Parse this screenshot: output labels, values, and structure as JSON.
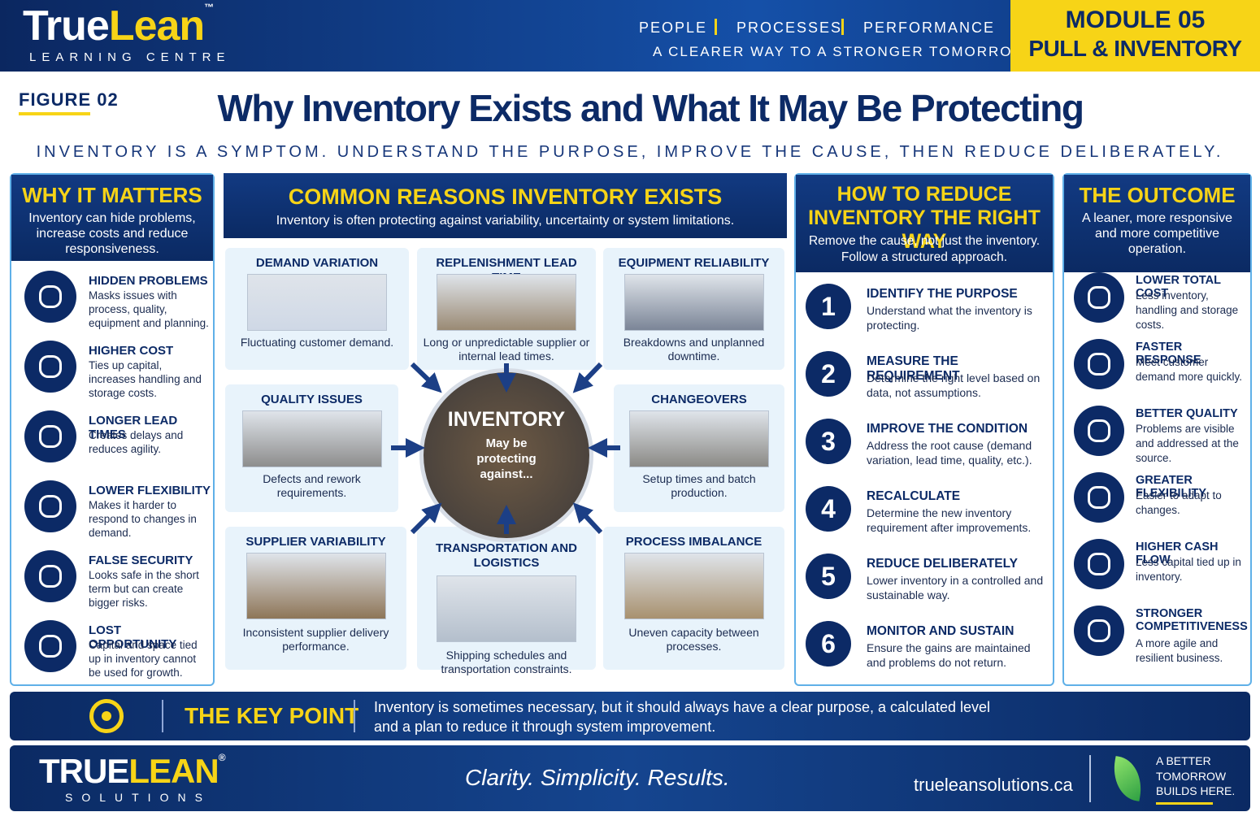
{
  "header": {
    "brand_parts": [
      "True",
      "Lean"
    ],
    "trademark": "™",
    "brand_sub": "LEARNING CENTRE",
    "tagline_items": [
      "PEOPLE",
      "PROCESSES",
      "PERFORMANCE"
    ],
    "tagline": "A CLEARER WAY TO A STRONGER TOMORROW",
    "module": "MODULE 05",
    "module_title": "PULL & INVENTORY"
  },
  "figure_label": "FIGURE 02",
  "title": "Why Inventory Exists and What It May Be Protecting",
  "subtitle": "INVENTORY IS A SYMPTOM. UNDERSTAND THE PURPOSE, IMPROVE THE CAUSE, THEN REDUCE DELIBERATELY.",
  "why": {
    "title": "WHY IT MATTERS",
    "intro": "Inventory can hide problems, increase costs and reduce responsiveness.",
    "items": [
      {
        "title": "HIDDEN PROBLEMS",
        "text": "Masks issues with process, quality, equipment and planning."
      },
      {
        "title": "HIGHER COST",
        "text": "Ties up capital, increases handling and storage costs."
      },
      {
        "title": "LONGER LEAD TIMES",
        "text": "Creates delays and reduces agility."
      },
      {
        "title": "LOWER FLEXIBILITY",
        "text": "Makes it harder to respond to changes in demand."
      },
      {
        "title": "FALSE SECURITY",
        "text": "Looks safe in the short term but can create bigger risks."
      },
      {
        "title": "LOST OPPORTUNITY",
        "text": "Capital and space tied up in inventory cannot be used for growth."
      }
    ]
  },
  "reasons": {
    "title": "COMMON REASONS INVENTORY EXISTS",
    "intro": "Inventory is often protecting against variability, uncertainty or system limitations.",
    "center": {
      "title": "INVENTORY",
      "text": "May be protecting against..."
    },
    "items": [
      {
        "title": "DEMAND VARIATION",
        "caption": "Fluctuating customer demand."
      },
      {
        "title": "REPLENISHMENT LEAD TIME",
        "caption": "Long or unpredictable supplier or internal lead times."
      },
      {
        "title": "EQUIPMENT RELIABILITY",
        "caption": "Breakdowns and unplanned downtime."
      },
      {
        "title": "QUALITY ISSUES",
        "caption": "Defects and rework requirements."
      },
      {
        "title": "CHANGEOVERS",
        "caption": "Setup times and batch production."
      },
      {
        "title": "SUPPLIER VARIABILITY",
        "caption": "Inconsistent supplier delivery performance."
      },
      {
        "title": "TRANSPORTATION AND LOGISTICS",
        "caption": "Shipping schedules and transportation constraints."
      },
      {
        "title": "PROCESS IMBALANCE",
        "caption": "Uneven capacity between processes."
      }
    ]
  },
  "reduce": {
    "title": "HOW TO REDUCE INVENTORY THE RIGHT WAY",
    "intro": "Remove the cause, not just the inventory. Follow a structured approach.",
    "steps": [
      {
        "number": 1,
        "title": "IDENTIFY THE PURPOSE",
        "text": "Understand what the inventory is protecting."
      },
      {
        "number": 2,
        "title": "MEASURE THE REQUIREMENT",
        "text": "Determine the right level based on data, not assumptions."
      },
      {
        "number": 3,
        "title": "IMPROVE THE CONDITION",
        "text": "Address the root cause (demand variation, lead time, quality, etc.)."
      },
      {
        "number": 4,
        "title": "RECALCULATE",
        "text": "Determine the new inventory requirement after improvements."
      },
      {
        "number": 5,
        "title": "REDUCE DELIBERATELY",
        "text": "Lower inventory in a controlled and sustainable way."
      },
      {
        "number": 6,
        "title": "MONITOR AND SUSTAIN",
        "text": "Ensure the gains are maintained and problems do not return."
      }
    ]
  },
  "outcome": {
    "title": "THE OUTCOME",
    "intro": "A leaner, more responsive and more competitive operation.",
    "items": [
      {
        "title": "LOWER TOTAL COST",
        "text": "Less inventory, handling and storage costs."
      },
      {
        "title": "FASTER RESPONSE",
        "text": "Meet customer demand more quickly."
      },
      {
        "title": "BETTER QUALITY",
        "text": "Problems are visible and addressed at the source."
      },
      {
        "title": "GREATER FLEXIBILITY",
        "text": "Easier to adapt to changes."
      },
      {
        "title": "HIGHER CASH FLOW",
        "text": "Less capital tied up in inventory."
      },
      {
        "title": "STRONGER COMPETITIVENESS",
        "text": "A more agile and resilient business."
      }
    ]
  },
  "key_point": {
    "title": "THE KEY POINT",
    "text": "Inventory is sometimes necessary, but it should always have a clear purpose, a calculated level and a plan to reduce it through system improvement."
  },
  "footer": {
    "brand_parts": [
      "TRUE",
      "LEAN"
    ],
    "registered": "®",
    "brand_sub": "SOLUTIONS",
    "slogan": "Clarity. Simplicity. Results.",
    "url": "trueleansolutions.ca",
    "tagline": "A BETTER TOMORROW BUILDS HERE."
  }
}
